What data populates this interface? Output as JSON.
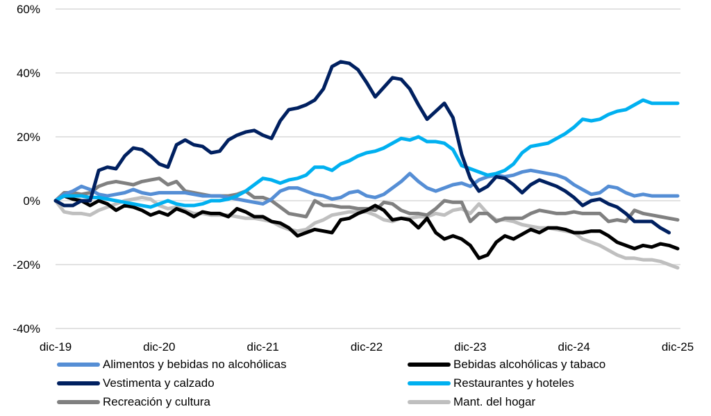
{
  "chart_data": {
    "type": "line",
    "title": "",
    "xlabel": "",
    "ylabel": "",
    "ylim": [
      -40,
      60
    ],
    "yticks": [
      60,
      40,
      20,
      0,
      -20,
      -40
    ],
    "ytick_labels": [
      "60%",
      "40%",
      "20%",
      "0%",
      "-20%",
      "-40%"
    ],
    "xtick_labels": [
      "dic-19",
      "dic-20",
      "dic-21",
      "dic-22",
      "dic-23",
      "dic-24",
      "dic-25"
    ],
    "xtick_index": [
      0,
      12,
      24,
      36,
      48,
      60,
      72
    ],
    "x_unit": "months since dic-19",
    "grid": true,
    "legend_position": "bottom",
    "series": [
      {
        "name": "Alimentos y bebidas no alcohólicas",
        "color": "#558ED5",
        "values": [
          0,
          2,
          3,
          4.5,
          3.5,
          2,
          1.5,
          2,
          2.5,
          3.5,
          2.5,
          2,
          2.5,
          2.5,
          2.5,
          2.5,
          2,
          1.5,
          1.5,
          1.5,
          1,
          0.5,
          0,
          -0.5,
          -1,
          0.5,
          3,
          4,
          4,
          3,
          2,
          1.5,
          0.5,
          1,
          2.5,
          3,
          1.5,
          1,
          2,
          4,
          6,
          8.5,
          6,
          4,
          3,
          4,
          5,
          5.5,
          4.5,
          6.5,
          7.5,
          8,
          7.5,
          8,
          9,
          9.5,
          9,
          8.5,
          8,
          7,
          5,
          3.5,
          2,
          2.5,
          4.5,
          4,
          2.5,
          1.5,
          2,
          1.5,
          1.5,
          1.5,
          1.5
        ]
      },
      {
        "name": "Bebidas alcohólicas y tabaco",
        "color": "#000000",
        "values": [
          0,
          1.5,
          0.5,
          0,
          -1.5,
          0,
          -1,
          -3,
          -1.5,
          -2,
          -3,
          -4.5,
          -3.5,
          -4.5,
          -2.5,
          -3.5,
          -5,
          -3.5,
          -4,
          -4,
          -5,
          -2.5,
          -3.5,
          -5,
          -5,
          -6.5,
          -7,
          -8.5,
          -11,
          -10,
          -9,
          -9.5,
          -10,
          -6,
          -5.5,
          -4,
          -3,
          -1.5,
          -3,
          -6,
          -5.5,
          -6,
          -8.5,
          -5.5,
          -10,
          -12,
          -11,
          -12,
          -14,
          -18,
          -17,
          -13,
          -11,
          -12,
          -10.5,
          -9,
          -10,
          -8.5,
          -8.5,
          -9,
          -10,
          -10,
          -9.5,
          -9.5,
          -11,
          -13,
          -14,
          -15,
          -14,
          -14.5,
          -13.5,
          -14,
          -15
        ]
      },
      {
        "name": "Vestimenta y calzado",
        "color": "#002060",
        "values": [
          0,
          -1.5,
          -1.5,
          0,
          0,
          9.5,
          10.5,
          10,
          14,
          16.5,
          16,
          14,
          11.5,
          10.5,
          17.5,
          19,
          17.5,
          17,
          15,
          15.5,
          19,
          20.5,
          21.5,
          22,
          20.5,
          19.5,
          25,
          28.5,
          29,
          30,
          31.5,
          35,
          42,
          43.5,
          43,
          41,
          37,
          32.5,
          35.5,
          38.5,
          38,
          35,
          30,
          25.5,
          28,
          30.5,
          26,
          14.5,
          7,
          3,
          4.5,
          7.5,
          7,
          5,
          2.5,
          5,
          6.5,
          5.5,
          4.5,
          3,
          1,
          -1.5,
          0,
          0.5,
          -1,
          -2,
          -4,
          -6.5,
          -6.5,
          -6.5,
          -8.5,
          -10
        ]
      },
      {
        "name": "Restaurantes y hoteles",
        "color": "#00B0F0",
        "values": [
          0,
          1.5,
          1.5,
          1.5,
          1,
          1,
          0.5,
          0,
          -0.5,
          -1,
          -1.5,
          -2,
          -1,
          0,
          -1,
          -1.5,
          -1.5,
          -1,
          0,
          0,
          0.5,
          1.5,
          3,
          5,
          7,
          6.5,
          5.5,
          6.5,
          7,
          8,
          10.5,
          10.5,
          9.5,
          11.5,
          12.5,
          14,
          15,
          15.5,
          16.5,
          18,
          19.5,
          19,
          20,
          18.5,
          18.5,
          18,
          16,
          11,
          10,
          9,
          8,
          8.5,
          9.5,
          11.5,
          15,
          17,
          17.5,
          18,
          19.5,
          21,
          23,
          25.5,
          25,
          25.5,
          27,
          28,
          28.5,
          30,
          31.5,
          30.5,
          30.5,
          30.5,
          30.5
        ]
      },
      {
        "name": "Recreación y cultura",
        "color": "#808080",
        "values": [
          0,
          2.5,
          2.5,
          2,
          2.5,
          4.5,
          5.5,
          6,
          5.5,
          5,
          6,
          6.5,
          7,
          5,
          6,
          3,
          2.5,
          2,
          1.5,
          1.5,
          1.5,
          2,
          3,
          1,
          1,
          0,
          -2,
          -4,
          -4.5,
          -5,
          0,
          -1.5,
          -1.5,
          -2,
          -2,
          -2.5,
          -2.5,
          -3,
          -0.5,
          -1,
          -3,
          -4,
          -4,
          -4.5,
          -2.5,
          0,
          -0.5,
          -0.5,
          -6.5,
          -4,
          -4,
          -6.5,
          -5.5,
          -5.5,
          -5.5,
          -4,
          -3,
          -3.5,
          -4,
          -4,
          -3.5,
          -4,
          -4,
          -4,
          -6.5,
          -6,
          -6.5,
          -3,
          -4,
          -4.5,
          -5,
          -5.5,
          -6
        ]
      },
      {
        "name": "Mant. del hogar",
        "color": "#BFBFBF",
        "values": [
          0,
          -3.5,
          -4,
          -4,
          -4.5,
          -3,
          -2,
          -1,
          0,
          0.5,
          1,
          0.5,
          -1.5,
          -2.5,
          -2,
          -3,
          -4,
          -4,
          -4.5,
          -4.5,
          -4.5,
          -5,
          -5.5,
          -5.5,
          -6,
          -6.5,
          -8,
          -9,
          -9.5,
          -9,
          -7,
          -6,
          -4.5,
          -4,
          -3.5,
          -3.5,
          -3.5,
          -4.5,
          -6,
          -6.5,
          -5.5,
          -5.5,
          -5,
          -5,
          -4,
          -4.5,
          -3,
          -2.5,
          -4,
          -1,
          -4,
          -6,
          -6,
          -6.5,
          -7.5,
          -8,
          -8.5,
          -8.5,
          -9,
          -9.5,
          -10,
          -12,
          -13,
          -14,
          -15.5,
          -17,
          -18,
          -18,
          -18.5,
          -18.5,
          -19,
          -20,
          -21
        ]
      }
    ]
  }
}
